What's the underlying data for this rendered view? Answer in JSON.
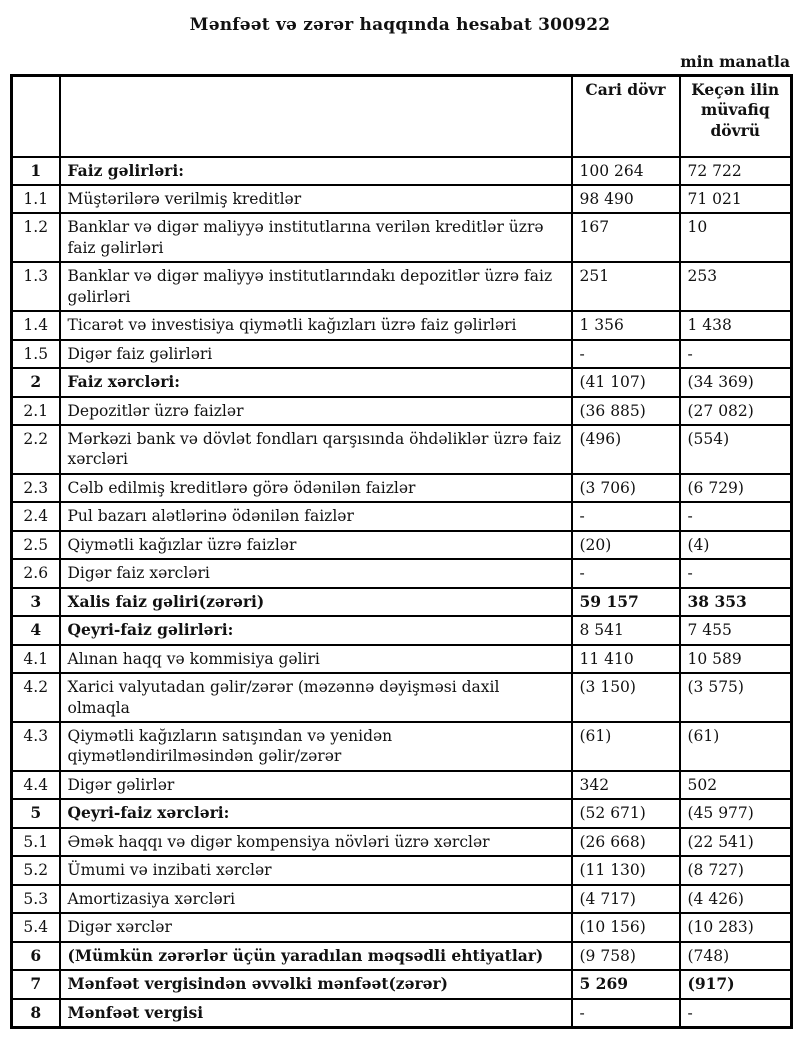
{
  "page": {
    "title": "Mənfəət və zərər haqqında hesabat 300922",
    "unit_note": "min manatla"
  },
  "table": {
    "header": {
      "number_column": "",
      "label_column": "",
      "current_period": "Cari dövr",
      "previous_period": "Keçən ilin müvafiq dövrü"
    },
    "rows": [
      {
        "no": "1",
        "label": "Faiz gəlirləri:",
        "current": "100 264",
        "previous": "72 722",
        "bold": true,
        "bold_values": false
      },
      {
        "no": "1.1",
        "label": "Müştərilərə verilmiş kreditlər",
        "current": "98 490",
        "previous": "71 021",
        "bold": false,
        "bold_values": false
      },
      {
        "no": "1.2",
        "label": "Banklar və digər maliyyə institutlarına verilən kreditlər üzrə faiz gəlirləri",
        "current": "167",
        "previous": "10",
        "bold": false,
        "bold_values": false
      },
      {
        "no": "1.3",
        "label": "Banklar və digər maliyyə institutlarındakı depozitlər üzrə faiz gəlirləri",
        "current": "251",
        "previous": "253",
        "bold": false,
        "bold_values": false
      },
      {
        "no": "1.4",
        "label": "Ticarət və investisiya qiymətli kağızları üzrə faiz gəlirləri",
        "current": "1 356",
        "previous": "1 438",
        "bold": false,
        "bold_values": false
      },
      {
        "no": "1.5",
        "label": "Digər faiz gəlirləri",
        "current": "-",
        "previous": "-",
        "bold": false,
        "bold_values": false
      },
      {
        "no": "2",
        "label": "Faiz xərcləri:",
        "current": "(41 107)",
        "previous": "(34 369)",
        "bold": true,
        "bold_values": false
      },
      {
        "no": "2.1",
        "label": "Depozitlər üzrə faizlər",
        "current": "(36 885)",
        "previous": "(27 082)",
        "bold": false,
        "bold_values": false
      },
      {
        "no": "2.2",
        "label": "Mərkəzi bank və dövlət fondları qarşısında öhdəliklər üzrə faiz xərcləri",
        "current": "(496)",
        "previous": "(554)",
        "bold": false,
        "bold_values": false
      },
      {
        "no": "2.3",
        "label": "Cəlb edilmiş kreditlərə görə ödənilən faizlər",
        "current": "(3 706)",
        "previous": "(6 729)",
        "bold": false,
        "bold_values": false
      },
      {
        "no": "2.4",
        "label": "Pul bazarı alətlərinə ödənilən faizlər",
        "current": "-",
        "previous": "-",
        "bold": false,
        "bold_values": false
      },
      {
        "no": "2.5",
        "label": "Qiymətli kağızlar üzrə faizlər",
        "current": "(20)",
        "previous": "(4)",
        "bold": false,
        "bold_values": false
      },
      {
        "no": "2.6",
        "label": "Digər faiz xərcləri",
        "current": "-",
        "previous": "-",
        "bold": false,
        "bold_values": false
      },
      {
        "no": "3",
        "label": "Xalis faiz gəliri(zərəri)",
        "current": "59 157",
        "previous": "38 353",
        "bold": true,
        "bold_values": true
      },
      {
        "no": "4",
        "label": "Qeyri-faiz gəlirləri:",
        "current": "8 541",
        "previous": "7 455",
        "bold": true,
        "bold_values": false
      },
      {
        "no": "4.1",
        "label": "Alınan haqq və kommisiya gəliri",
        "current": "11 410",
        "previous": "10 589",
        "bold": false,
        "bold_values": false
      },
      {
        "no": "4.2",
        "label": "Xarici valyutadan gəlir/zərər (məzənnə dəyişməsi daxil olmaqla",
        "current": "(3 150)",
        "previous": "(3 575)",
        "bold": false,
        "bold_values": false
      },
      {
        "no": "4.3",
        "label": "Qiymətli kağızların satışından və yenidən qiymətləndirilməsindən gəlir/zərər",
        "current": "(61)",
        "previous": "(61)",
        "bold": false,
        "bold_values": false
      },
      {
        "no": "4.4",
        "label": "Digər gəlirlər",
        "current": "342",
        "previous": "502",
        "bold": false,
        "bold_values": false
      },
      {
        "no": "5",
        "label": "Qeyri-faiz xərcləri:",
        "current": "(52 671)",
        "previous": "(45 977)",
        "bold": true,
        "bold_values": false
      },
      {
        "no": "5.1",
        "label": "Əmək haqqı və digər kompensiya növləri üzrə xərclər",
        "current": "(26 668)",
        "previous": "(22 541)",
        "bold": false,
        "bold_values": false
      },
      {
        "no": "5.2",
        "label": "Ümumi və inzibati xərclər",
        "current": "(11 130)",
        "previous": "(8 727)",
        "bold": false,
        "bold_values": false
      },
      {
        "no": "5.3",
        "label": "Amortizasiya xərcləri",
        "current": "(4 717)",
        "previous": "(4 426)",
        "bold": false,
        "bold_values": false
      },
      {
        "no": "5.4",
        "label": "Digər xərclər",
        "current": "(10 156)",
        "previous": "(10 283)",
        "bold": false,
        "bold_values": false
      },
      {
        "no": "6",
        "label": "(Mümkün zərərlər üçün yaradılan məqsədli ehtiyatlar)",
        "current": "(9 758)",
        "previous": "(748)",
        "bold": true,
        "bold_values": false
      },
      {
        "no": "7",
        "label": "Mənfəət vergisindən əvvəlki mənfəət(zərər)",
        "current": "5 269",
        "previous": "(917)",
        "bold": true,
        "bold_values": true
      },
      {
        "no": "8",
        "label": "Mənfəət vergisi",
        "current": "-",
        "previous": "-",
        "bold": true,
        "bold_values": false
      }
    ]
  }
}
